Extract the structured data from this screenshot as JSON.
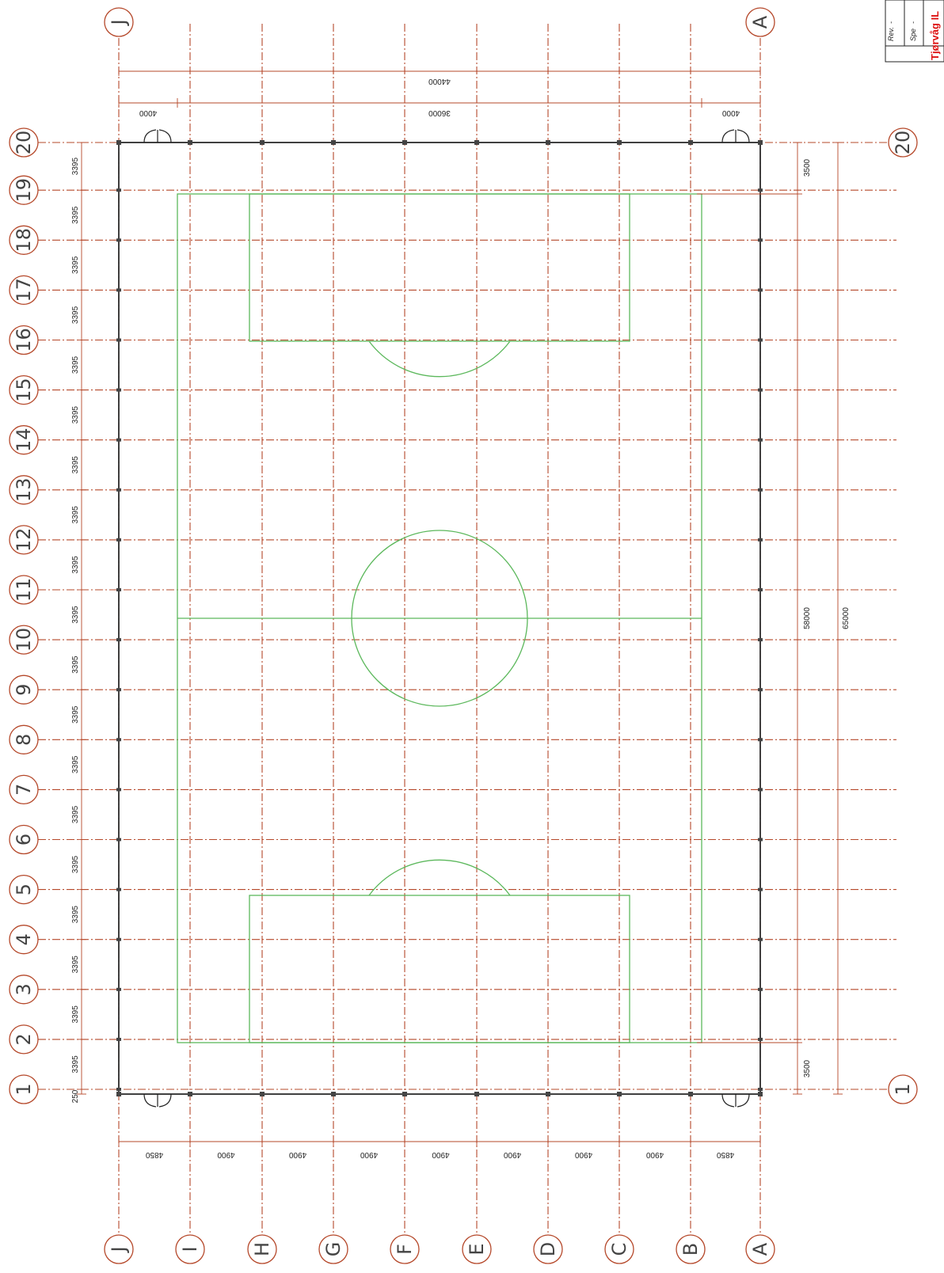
{
  "grid_letters": [
    "J",
    "I",
    "H",
    "G",
    "F",
    "E",
    "D",
    "C",
    "B",
    "A"
  ],
  "grid_numbers": [
    "1",
    "2",
    "3",
    "4",
    "5",
    "6",
    "7",
    "8",
    "9",
    "10",
    "11",
    "12",
    "13",
    "14",
    "15",
    "16",
    "17",
    "18",
    "19",
    "20"
  ],
  "dimensions": {
    "overall_width": "44000",
    "inner_width": "36000",
    "side_offset_left": "4000",
    "side_offset_right": "4000",
    "bay_widths": [
      "4850",
      "4900",
      "4900",
      "4900",
      "4900",
      "4900",
      "4900",
      "4900",
      "4850"
    ],
    "bay_length": "3395",
    "start_offset": "250",
    "end_offset_bottom": "3500",
    "end_offset_top": "3500",
    "field_length": "58000",
    "overall_length": "65000"
  },
  "title_block": {
    "rev_label": "Rev.",
    "spec_label": "Spe",
    "dash": "-",
    "client": "Tjørvåg IL"
  },
  "colors": {
    "grid": "#b5482a",
    "field": "#5cb85c",
    "wall": "#111111",
    "client": "#d11111"
  }
}
